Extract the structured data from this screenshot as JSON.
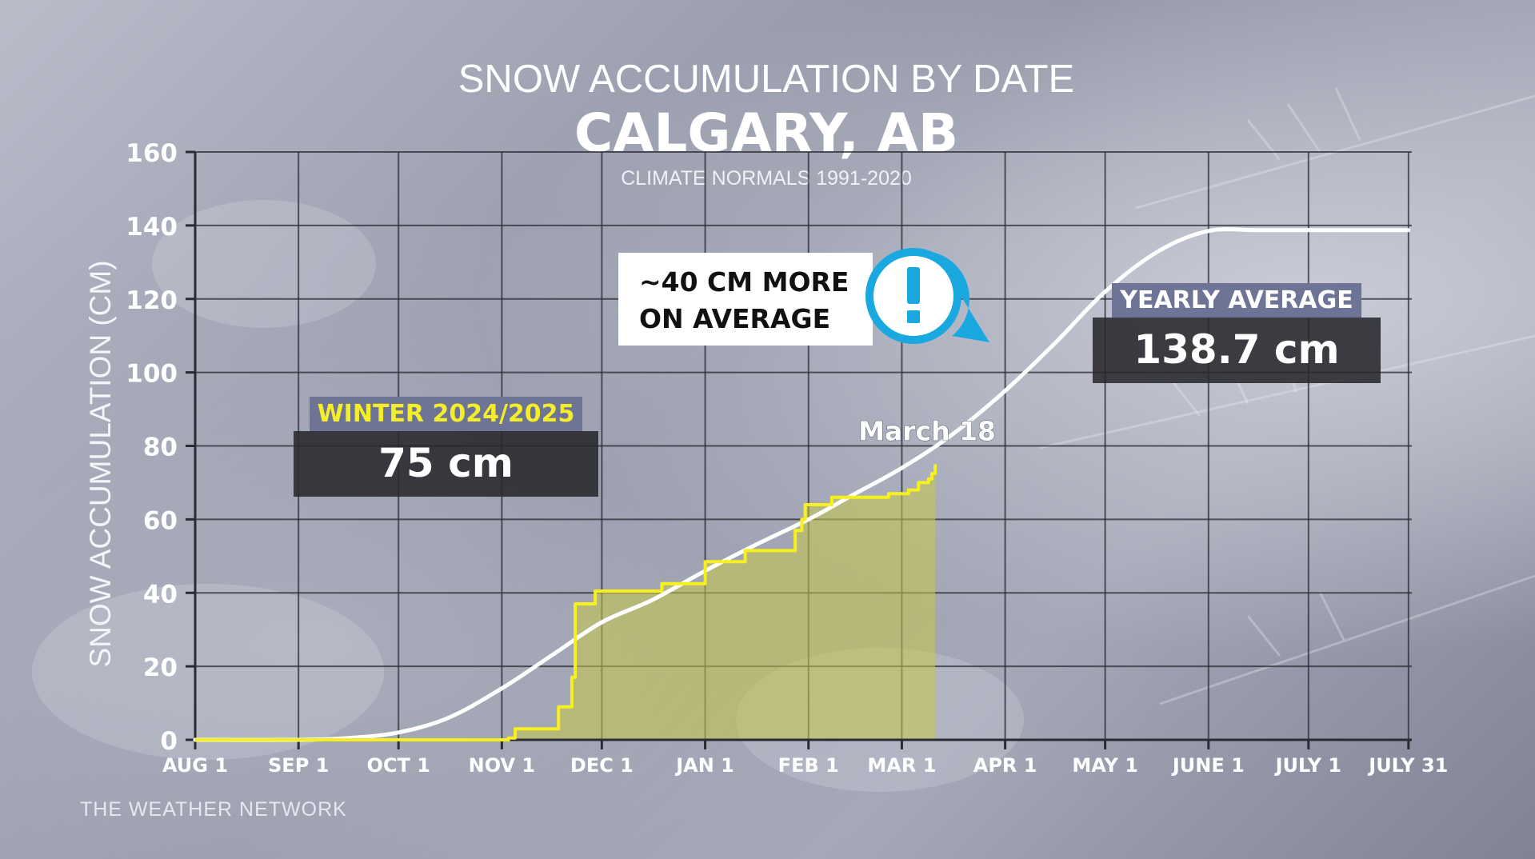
{
  "header": {
    "title": "SNOW ACCUMULATION BY DATE",
    "city": "CALGARY, AB",
    "subtitle": "CLIMATE NORMALS 1991-2020"
  },
  "winter_box": {
    "label": "WINTER 2024/2025",
    "value": "75 cm"
  },
  "yearly_box": {
    "label": "YEARLY AVERAGE",
    "value": "138.7 cm"
  },
  "callout": {
    "line1": "~40 CM MORE",
    "line2": "ON AVERAGE",
    "icon": "exclamation-alert-icon"
  },
  "brand": "THE WEATHER NETWORK",
  "colors": {
    "average": "#ffffff",
    "winter": "#f7f01e",
    "fill": "#c9c94a",
    "tag": "#6d7495",
    "alert": "#1aa8e0"
  },
  "chart_data": {
    "type": "line",
    "ylabel": "SNOW ACCUMULATION (CM)",
    "xlabel": "",
    "ylim": [
      0,
      160
    ],
    "yticks": [
      0,
      20,
      40,
      60,
      80,
      100,
      120,
      140,
      160
    ],
    "xlim": [
      0,
      365
    ],
    "xticks": [
      {
        "label": "AUG 1",
        "day": 0
      },
      {
        "label": "SEP 1",
        "day": 31
      },
      {
        "label": "OCT 1",
        "day": 61
      },
      {
        "label": "NOV 1",
        "day": 92
      },
      {
        "label": "DEC 1",
        "day": 122
      },
      {
        "label": "JAN 1",
        "day": 153
      },
      {
        "label": "FEB 1",
        "day": 184
      },
      {
        "label": "MAR 1",
        "day": 212
      },
      {
        "label": "APR 1",
        "day": 243
      },
      {
        "label": "MAY 1",
        "day": 273
      },
      {
        "label": "JUNE 1",
        "day": 304
      },
      {
        "label": "JULY 1",
        "day": 334
      },
      {
        "label": "JULY 31",
        "day": 364
      }
    ],
    "grid": true,
    "annotation": "March 18",
    "series": [
      {
        "name": "YEARLY AVERAGE",
        "color": "#ffffff",
        "points": [
          [
            0,
            0
          ],
          [
            31,
            0
          ],
          [
            46,
            0.5
          ],
          [
            61,
            2
          ],
          [
            76,
            6
          ],
          [
            92,
            14
          ],
          [
            107,
            23
          ],
          [
            122,
            32
          ],
          [
            137,
            38
          ],
          [
            153,
            46
          ],
          [
            168,
            53
          ],
          [
            184,
            60
          ],
          [
            198,
            67
          ],
          [
            212,
            74
          ],
          [
            227,
            83
          ],
          [
            243,
            95
          ],
          [
            258,
            108
          ],
          [
            273,
            122
          ],
          [
            289,
            133
          ],
          [
            304,
            138.5
          ],
          [
            319,
            138.7
          ],
          [
            334,
            138.7
          ],
          [
            364,
            138.7
          ]
        ]
      },
      {
        "name": "WINTER 2024/2025",
        "color": "#f7f01e",
        "step": true,
        "points": [
          [
            0,
            0
          ],
          [
            90,
            0
          ],
          [
            94,
            0.5
          ],
          [
            96,
            3
          ],
          [
            108,
            3
          ],
          [
            109,
            9
          ],
          [
            111,
            9
          ],
          [
            113,
            17
          ],
          [
            114,
            37
          ],
          [
            118,
            37
          ],
          [
            120,
            40.5
          ],
          [
            139,
            40.5
          ],
          [
            140,
            42.5
          ],
          [
            149,
            42.5
          ],
          [
            153,
            48.5
          ],
          [
            162,
            48.5
          ],
          [
            165,
            51.5
          ],
          [
            178,
            51.5
          ],
          [
            180,
            57
          ],
          [
            182,
            60
          ],
          [
            183,
            64
          ],
          [
            188,
            64
          ],
          [
            191,
            66
          ],
          [
            206,
            66
          ],
          [
            208,
            67
          ],
          [
            214,
            68
          ],
          [
            217,
            70
          ],
          [
            220,
            71
          ],
          [
            221,
            72.5
          ],
          [
            222,
            75
          ]
        ]
      }
    ]
  }
}
